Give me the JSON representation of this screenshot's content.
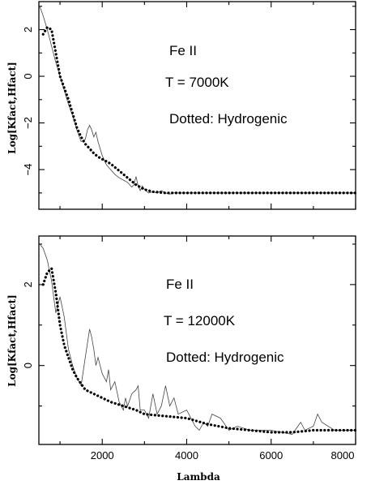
{
  "chart_data": [
    {
      "type": "line",
      "xlabel": "",
      "ylabel": "Log[Kfact,Hfact]",
      "xlim": [
        500,
        8000
      ],
      "ylim": [
        -5.7,
        3.2
      ],
      "yticks": [
        2,
        0,
        -2,
        -4
      ],
      "yticklabels": [
        "2",
        "0",
        "−2",
        "−4"
      ],
      "annotations": [
        "Fe II",
        "T = 7000K",
        "Dotted: Hydrogenic"
      ],
      "series": [
        {
          "style": "solid",
          "x": [
            520,
            600,
            700,
            800,
            900,
            1000,
            1100,
            1200,
            1300,
            1400,
            1500,
            1600,
            1650,
            1700,
            1750,
            1800,
            1850,
            1900,
            1950,
            2000,
            2050,
            2100,
            2200,
            2300,
            2400,
            2500,
            2600,
            2700,
            2750,
            2800,
            2850,
            2900,
            2950,
            3000,
            3100,
            3200,
            3300,
            3400,
            3500,
            3600,
            3700,
            3800,
            4000,
            5000,
            6000,
            7000,
            8000
          ],
          "y": [
            3.0,
            2.6,
            2.0,
            1.3,
            0.6,
            0.0,
            -0.6,
            -1.2,
            -1.7,
            -2.3,
            -2.8,
            -2.7,
            -2.3,
            -2.1,
            -2.3,
            -2.6,
            -2.4,
            -2.8,
            -3.1,
            -3.4,
            -3.6,
            -3.8,
            -4.0,
            -4.2,
            -4.35,
            -4.45,
            -4.55,
            -4.75,
            -4.65,
            -4.3,
            -4.7,
            -4.9,
            -4.7,
            -4.85,
            -5.0,
            -4.95,
            -5.0,
            -4.9,
            -5.0,
            -5.05,
            -5.0,
            -5.0,
            -5.0,
            -5.0,
            -5.0,
            -5.0,
            -5.0
          ]
        },
        {
          "style": "dotted",
          "x": [
            600,
            700,
            800,
            900,
            1000,
            1100,
            1200,
            1300,
            1400,
            1500,
            1600,
            1700,
            1800,
            1900,
            2000,
            2100,
            2200,
            2300,
            2400,
            2500,
            2600,
            2700,
            2800,
            2900,
            3000,
            3200,
            3500,
            4000,
            5000,
            6000,
            7000,
            8000
          ],
          "y": [
            1.8,
            2.1,
            2.0,
            1.0,
            0.0,
            -0.5,
            -1.0,
            -1.6,
            -2.2,
            -2.6,
            -2.9,
            -3.1,
            -3.3,
            -3.45,
            -3.55,
            -3.65,
            -3.75,
            -3.9,
            -4.05,
            -4.2,
            -4.35,
            -4.5,
            -4.65,
            -4.75,
            -4.85,
            -4.95,
            -5.0,
            -5.0,
            -5.0,
            -5.0,
            -5.0,
            -5.0
          ]
        }
      ]
    },
    {
      "type": "line",
      "xlabel": "Lambda",
      "ylabel": "Log[Kfact,Hfact]",
      "xlim": [
        500,
        8000
      ],
      "ylim": [
        -1.95,
        3.2
      ],
      "xticks": [
        2000,
        4000,
        6000,
        8000
      ],
      "xticklabels": [
        "2000",
        "4000",
        "6000",
        "8000"
      ],
      "yticks": [
        2,
        0
      ],
      "yticklabels": [
        "2",
        "0"
      ],
      "annotations": [
        "Fe II",
        "T = 12000K",
        "Dotted: Hydrogenic"
      ],
      "series": [
        {
          "style": "solid",
          "x": [
            520,
            600,
            700,
            800,
            900,
            1000,
            1100,
            1200,
            1300,
            1400,
            1500,
            1600,
            1700,
            1750,
            1800,
            1850,
            1900,
            2000,
            2100,
            2150,
            2200,
            2300,
            2400,
            2500,
            2550,
            2600,
            2700,
            2800,
            2850,
            2900,
            3000,
            3100,
            3200,
            3300,
            3400,
            3500,
            3600,
            3700,
            3800,
            4000,
            4200,
            4300,
            4400,
            4500,
            4600,
            4800,
            5000,
            5200,
            5500,
            6000,
            6500,
            6700,
            6800,
            7000,
            7100,
            7200,
            7500,
            8000
          ],
          "y": [
            3.0,
            2.9,
            2.6,
            2.1,
            1.3,
            1.7,
            1.2,
            0.4,
            0.0,
            -0.3,
            -0.5,
            0.2,
            0.9,
            0.7,
            0.4,
            0.0,
            0.2,
            -0.2,
            -0.4,
            -0.1,
            -0.6,
            -0.4,
            -0.9,
            -1.1,
            -0.8,
            -1.0,
            -0.7,
            -0.6,
            -0.5,
            -1.1,
            -1.1,
            -1.3,
            -0.7,
            -1.2,
            -1.0,
            -0.5,
            -1.0,
            -0.8,
            -1.2,
            -1.1,
            -1.5,
            -1.6,
            -1.4,
            -1.5,
            -1.2,
            -1.3,
            -1.6,
            -1.5,
            -1.6,
            -1.6,
            -1.7,
            -1.4,
            -1.6,
            -1.5,
            -1.2,
            -1.4,
            -1.6,
            -1.6
          ]
        },
        {
          "style": "dotted",
          "x": [
            600,
            700,
            800,
            900,
            1000,
            1100,
            1200,
            1300,
            1400,
            1500,
            1600,
            1800,
            2000,
            2200,
            2500,
            2800,
            3000,
            3500,
            4000,
            4500,
            5000,
            5500,
            6000,
            6500,
            7000,
            7500,
            8000
          ],
          "y": [
            2.0,
            2.3,
            2.4,
            1.8,
            1.0,
            0.5,
            0.2,
            -0.1,
            -0.3,
            -0.45,
            -0.6,
            -0.7,
            -0.8,
            -0.9,
            -1.0,
            -1.1,
            -1.2,
            -1.25,
            -1.3,
            -1.45,
            -1.55,
            -1.6,
            -1.65,
            -1.65,
            -1.6,
            -1.6,
            -1.6
          ]
        }
      ]
    }
  ]
}
